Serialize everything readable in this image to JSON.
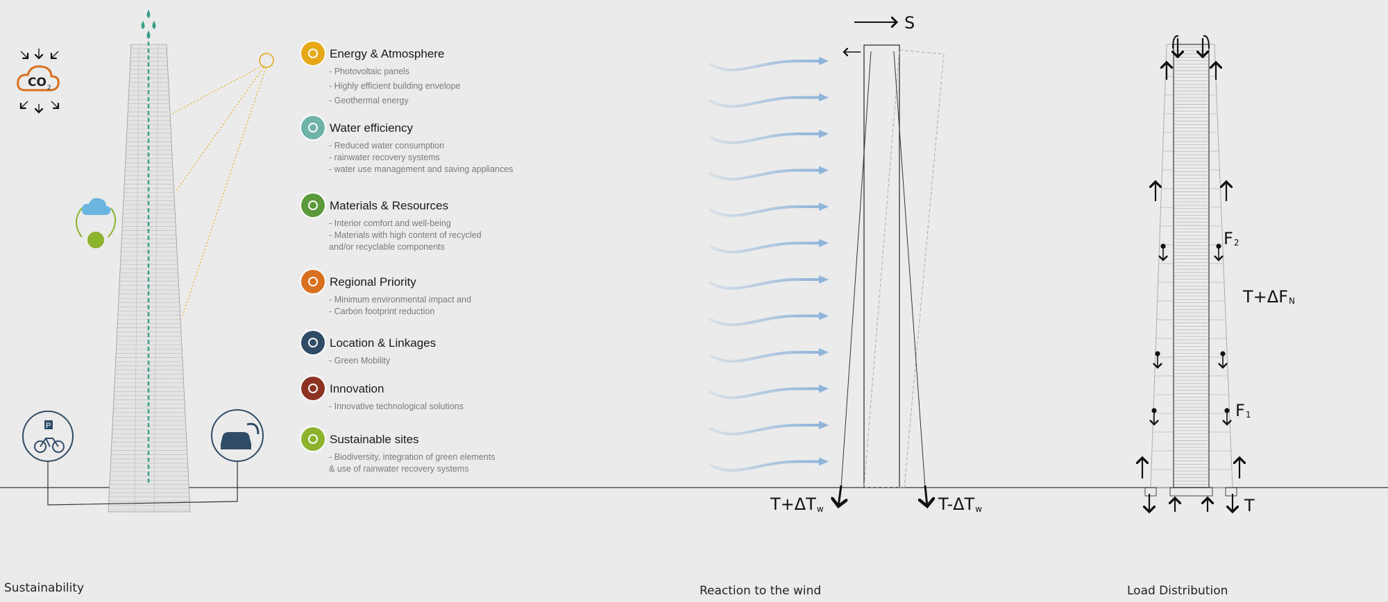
{
  "captions": {
    "sustainability": "Sustainability",
    "wind": "Reaction to the wind",
    "load": "Load Distribution"
  },
  "co2_label": "CO",
  "co2_sub": "2",
  "parking_label": "P",
  "categories": [
    {
      "title": "Energy & Atmosphere",
      "icon": "sun-icon",
      "color": "#e6a817",
      "items": [
        "- Photovoltaic panels",
        "- Highly efficient building envelope",
        "- Geothermal energy"
      ]
    },
    {
      "title": "Water efficiency",
      "icon": "water-drop-icon",
      "color": "#6fb3a8",
      "items": [
        "- Reduced water consumption",
        "- rainwater recovery systems",
        "- water use management and saving appliances"
      ]
    },
    {
      "title": "Materials & Resources",
      "icon": "recycle-icon",
      "color": "#5a9a3a",
      "items": [
        "- Interior comfort and well-being",
        "- Materials with high content of recycled",
        "   and/or recyclable components"
      ]
    },
    {
      "title": "Regional Priority",
      "icon": "magnifier-icon",
      "color": "#d9701f",
      "items": [
        "- Minimum environmental impact and",
        "- Carbon footprint reduction"
      ]
    },
    {
      "title": "Location & Linkages",
      "icon": "bus-icon",
      "color": "#2f4b66",
      "items": [
        "- Green Mobility"
      ]
    },
    {
      "title": "Innovation",
      "icon": "edit-icon",
      "color": "#8e3224",
      "items": [
        "- Innovative technological solutions"
      ]
    },
    {
      "title": "Sustainable sites",
      "icon": "sprout-icon",
      "color": "#8db32e",
      "items": [
        "- Biodiversity, integration of green elements",
        "  & use of rainwater recovery systems"
      ]
    }
  ],
  "wind": {
    "sway_label": "S",
    "left_label": "T+ΔT",
    "left_sub": "w",
    "right_label": "T-ΔT",
    "right_sub": "w"
  },
  "load": {
    "f2": "F",
    "f2_sub": "2",
    "fn": "T+ΔF",
    "fn_sub": "N",
    "f1": "F",
    "f1_sub": "1",
    "t": "T"
  },
  "colors": {
    "background": "#ebebeb",
    "wind": "#8fb4d9",
    "sun": "#e6a817",
    "water": "#3a9f8a",
    "dark": "#2f4b66"
  }
}
